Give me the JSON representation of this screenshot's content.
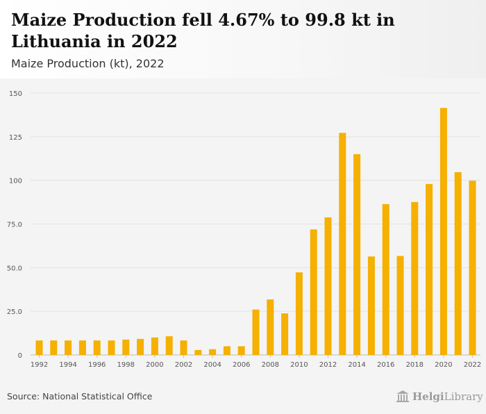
{
  "header": {
    "title": "Maize Production fell 4.67% to 99.8 kt in Lithuania in 2022",
    "subtitle": "Maize Production (kt), 2022"
  },
  "footer": {
    "source": "Source: National Statistical Office",
    "logo_bold": "Helgi",
    "logo_light": "Library"
  },
  "colors": {
    "bar": "#f5b000",
    "grid": "#e2e2e2",
    "panel_bg": "#f4f4f4"
  },
  "chart_data": {
    "type": "bar",
    "categories": [
      "1992",
      "1993",
      "1994",
      "1995",
      "1996",
      "1997",
      "1998",
      "1999",
      "2000",
      "2001",
      "2002",
      "2003",
      "2004",
      "2005",
      "2006",
      "2007",
      "2008",
      "2009",
      "2010",
      "2011",
      "2012",
      "2013",
      "2014",
      "2015",
      "2016",
      "2017",
      "2018",
      "2019",
      "2020",
      "2021",
      "2022"
    ],
    "values": [
      8.3,
      8.3,
      8.3,
      8.3,
      8.3,
      8.3,
      8.8,
      9.2,
      10.0,
      10.7,
      8.3,
      2.8,
      3.3,
      5.0,
      5.0,
      26.0,
      31.8,
      23.8,
      47.3,
      71.9,
      78.8,
      127.2,
      115.0,
      56.4,
      86.4,
      56.7,
      87.6,
      97.9,
      141.5,
      104.7,
      99.8
    ],
    "x_tick_labels": [
      "1992",
      "1994",
      "1996",
      "1998",
      "2000",
      "2002",
      "2004",
      "2006",
      "2008",
      "2010",
      "2012",
      "2014",
      "2016",
      "2018",
      "2020",
      "2022"
    ],
    "y_ticks": [
      0,
      25,
      50,
      75,
      100,
      125,
      150
    ],
    "y_tick_labels": [
      "0",
      "25.0",
      "50.0",
      "75.0",
      "100",
      "125",
      "150"
    ],
    "ylim": [
      0,
      150
    ],
    "grid": true,
    "title": "Maize Production fell 4.67% to 99.8 kt in Lithuania in 2022",
    "xlabel": "",
    "ylabel": ""
  }
}
